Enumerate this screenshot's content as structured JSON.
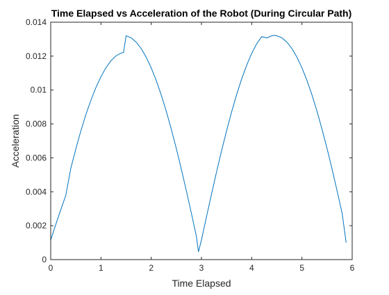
{
  "chart_data": {
    "type": "line",
    "title": "Time Elapsed vs Acceleration of the Robot (During Circular Path)",
    "xlabel": "Time Elapsed",
    "ylabel": "Acceleration",
    "xlim": [
      0,
      6
    ],
    "ylim": [
      0,
      0.014
    ],
    "xticks": [
      0,
      1,
      2,
      3,
      4,
      5,
      6
    ],
    "xtick_labels": [
      "0",
      "1",
      "2",
      "3",
      "4",
      "5",
      "6"
    ],
    "yticks": [
      0,
      0.002,
      0.004,
      0.006,
      0.008,
      0.01,
      0.012,
      0.014
    ],
    "ytick_labels": [
      "0",
      "0.002",
      "0.004",
      "0.006",
      "0.008",
      "0.01",
      "0.012",
      "0.014"
    ],
    "grid": false,
    "box": true,
    "series": [
      {
        "color": "#0072bd",
        "x": [
          0,
          0.1,
          0.2,
          0.3,
          0.4,
          0.5,
          0.6,
          0.7,
          0.8,
          0.9,
          1.0,
          1.1,
          1.2,
          1.3,
          1.4,
          1.45,
          1.5,
          1.6,
          1.7,
          1.8,
          1.9,
          2.0,
          2.1,
          2.2,
          2.3,
          2.4,
          2.5,
          2.6,
          2.7,
          2.8,
          2.9,
          2.94,
          3.0,
          3.1,
          3.2,
          3.3,
          3.4,
          3.5,
          3.6,
          3.7,
          3.8,
          3.9,
          4.0,
          4.1,
          4.2,
          4.3,
          4.4,
          4.45,
          4.5,
          4.6,
          4.7,
          4.8,
          4.9,
          5.0,
          5.1,
          5.2,
          5.3,
          5.4,
          5.5,
          5.6,
          5.7,
          5.8,
          5.88
        ],
        "y": [
          0.00116,
          0.00206,
          0.00294,
          0.00378,
          0.00538,
          0.00653,
          0.00759,
          0.00855,
          0.0094,
          0.01015,
          0.01079,
          0.01132,
          0.01173,
          0.01202,
          0.01218,
          0.01222,
          0.0132,
          0.01308,
          0.01283,
          0.01245,
          0.01194,
          0.01131,
          0.01057,
          0.00971,
          0.00875,
          0.00769,
          0.00655,
          0.00533,
          0.00405,
          0.00273,
          0.00136,
          0.00046,
          0.00115,
          0.00252,
          0.00386,
          0.00516,
          0.00641,
          0.0076,
          0.00871,
          0.00973,
          0.01065,
          0.01146,
          0.01216,
          0.01273,
          0.01315,
          0.01307,
          0.0132,
          0.01322,
          0.0132,
          0.01308,
          0.01283,
          0.01245,
          0.01194,
          0.01131,
          0.01057,
          0.00971,
          0.00875,
          0.00769,
          0.00655,
          0.00533,
          0.00405,
          0.00273,
          0.001
        ]
      }
    ]
  }
}
